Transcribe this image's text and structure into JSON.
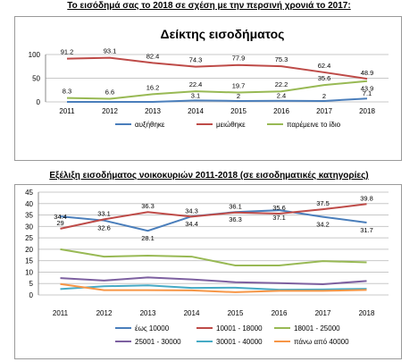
{
  "chart_data": [
    {
      "type": "line",
      "heading": "Το εισόδημά σας το 2018 σε σχέση με την περσινή χρονιά το 2017:",
      "title": "Δείκτης εισοδήματος",
      "categories": [
        "2011",
        "2012",
        "2013",
        "2014",
        "2015",
        "2016",
        "2017",
        "2018"
      ],
      "ylim": [
        0,
        100
      ],
      "yticks": [
        0,
        50,
        100
      ],
      "grid": true,
      "legend": "bottom",
      "series": [
        {
          "name": "αυξήθηκε",
          "color": "#4a7ebb",
          "values": [
            0,
            0,
            0,
            3.1,
            2,
            2.4,
            2,
            7.1
          ],
          "labels": [
            "",
            "",
            "",
            "3.1",
            "2",
            "2.4",
            "2",
            "7.1"
          ]
        },
        {
          "name": "μειώθηκε",
          "color": "#be4b48",
          "values": [
            91.2,
            93.1,
            82.4,
            74.3,
            77.9,
            75.3,
            62.4,
            48.9
          ],
          "labels": [
            "91.2",
            "93.1",
            "82.4",
            "74.3",
            "77.9",
            "75.3",
            "62.4",
            "48.9"
          ]
        },
        {
          "name": "παρέμεινε το ίδιο",
          "color": "#98b954",
          "values": [
            8.3,
            6.6,
            16.2,
            22.4,
            19.7,
            22.2,
            35.6,
            43.9
          ],
          "labels": [
            "8.3",
            "6.6",
            "16.2",
            "22.4",
            "19.7",
            "22.2",
            "35.6",
            "43.9"
          ]
        }
      ]
    },
    {
      "type": "line",
      "heading": "Εξέλιξη εισοδήματος νοικοκυριών 2011-2018 (σε εισοδηματικές κατηγορίες)",
      "categories": [
        "2011",
        "2012",
        "2013",
        "2014",
        "2015",
        "2016",
        "2017",
        "2018"
      ],
      "ylim": [
        0,
        45
      ],
      "yticks": [
        0,
        5,
        10,
        15,
        20,
        25,
        30,
        35,
        40,
        45
      ],
      "grid": true,
      "legend": "bottom",
      "series": [
        {
          "name": "έως 10000",
          "color": "#4a7ebb",
          "values": [
            34.4,
            32.6,
            28.1,
            34.4,
            36.3,
            37.1,
            34.2,
            31.7
          ],
          "labels": [
            "34.4",
            "32.6",
            "28.1",
            "34.4",
            "36.3",
            "37.1",
            "34.2",
            "31.7"
          ]
        },
        {
          "name": "10001 - 18000",
          "color": "#be4b48",
          "values": [
            29,
            33.1,
            36.3,
            34.3,
            36.1,
            35.6,
            37.5,
            39.8
          ],
          "labels": [
            "29",
            "33.1",
            "36.3",
            "34.3",
            "36.1",
            "35.6",
            "37.5",
            "39.8"
          ]
        },
        {
          "name": "18001 - 25000",
          "color": "#98b954",
          "values": [
            20,
            16.8,
            17.2,
            16.8,
            12.9,
            12.9,
            14.8,
            14.3
          ],
          "labels": []
        },
        {
          "name": "25001 - 30000",
          "color": "#7d60a0",
          "values": [
            7.4,
            6.3,
            7.7,
            6.8,
            5.6,
            5.2,
            4.7,
            6.1
          ],
          "labels": []
        },
        {
          "name": "30001 - 40000",
          "color": "#46aac5",
          "values": [
            2.6,
            3.8,
            4.2,
            3.1,
            3.2,
            2.3,
            2.4,
            2.7
          ],
          "labels": []
        },
        {
          "name": "πάνω από 40000",
          "color": "#f79646",
          "values": [
            4.8,
            2.1,
            2.1,
            2,
            1.2,
            1.8,
            1.8,
            2.2
          ],
          "labels": []
        }
      ]
    }
  ]
}
